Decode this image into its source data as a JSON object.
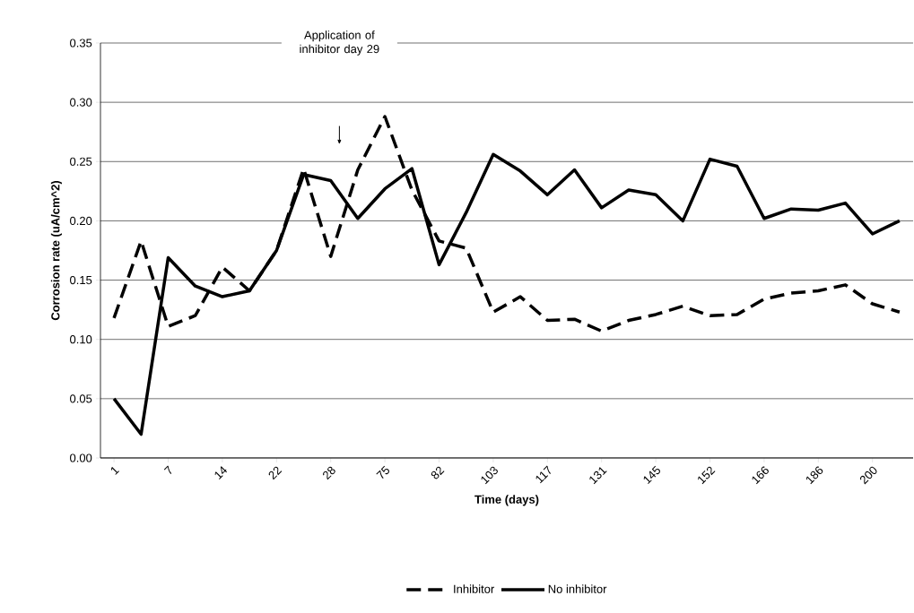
{
  "chart_data": {
    "type": "line",
    "xlabel": "Time (days)",
    "ylabel": "Corrosion rate (uA/cm^2)",
    "annotations": [
      "Application of inhibitor day 29"
    ],
    "categories": [
      "1",
      null,
      "7",
      null,
      "14",
      null,
      "22",
      null,
      "28",
      null,
      "75",
      null,
      "82",
      null,
      "103",
      null,
      "117",
      null,
      "131",
      null,
      "145",
      null,
      "152",
      null,
      "166",
      null,
      "186",
      null,
      "200",
      null
    ],
    "ylim": [
      0,
      0.35
    ],
    "yticks": [
      {
        "value": 0,
        "label": "0.00"
      },
      {
        "value": 0.05,
        "label": "0.05"
      },
      {
        "value": 0.1,
        "label": "0.10"
      },
      {
        "value": 0.15,
        "label": "0.15"
      },
      {
        "value": 0.2,
        "label": "0.20"
      },
      {
        "value": 0.25,
        "label": "0.25"
      },
      {
        "value": 0.3,
        "label": "0.30"
      },
      {
        "value": 0.35,
        "label": "0.35"
      }
    ],
    "grid": "y",
    "legend": "bottom",
    "series": [
      {
        "name": "Inhibitor",
        "color": "#000000",
        "line_style": "dashed",
        "values": [
          0.118,
          0.183,
          0.111,
          0.12,
          0.161,
          0.141,
          0.175,
          0.244,
          0.17,
          0.243,
          0.288,
          0.226,
          0.183,
          0.177,
          0.123,
          0.136,
          0.116,
          0.117,
          0.107,
          0.116,
          0.121,
          0.128,
          0.12,
          0.121,
          0.134,
          0.139,
          0.141,
          0.146,
          0.13,
          0.123
        ]
      },
      {
        "name": "No inhibitor",
        "color": "#000000",
        "line_style": "solid",
        "values": [
          0.05,
          0.02,
          0.169,
          0.145,
          0.136,
          0.141,
          0.175,
          0.239,
          0.234,
          0.202,
          0.227,
          0.244,
          0.163,
          0.207,
          0.256,
          0.242,
          0.222,
          0.243,
          0.211,
          0.226,
          0.222,
          0.2,
          0.252,
          0.246,
          0.202,
          0.21,
          0.209,
          0.215,
          0.189,
          0.2
        ]
      }
    ]
  }
}
